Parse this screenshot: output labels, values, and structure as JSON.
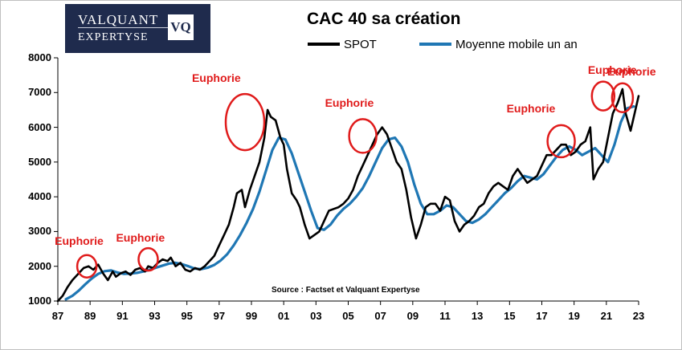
{
  "logo": {
    "line1": "VALQUANT",
    "line2": "EXPERTYSE",
    "badge": "VQ"
  },
  "colors": {
    "spot": "#000000",
    "moving_average": "#1f77b4",
    "euphoria": "#e01b1b"
  },
  "source": "Source : Factset et Valquant Expertyse",
  "chart_data": {
    "type": "line",
    "title": "CAC 40 sa création",
    "xlabel": "",
    "ylabel": "",
    "ylim": [
      1000,
      8000
    ],
    "xlim": [
      1987.0,
      2023.0
    ],
    "y_ticks": [
      "1000",
      "2000",
      "3000",
      "4000",
      "5000",
      "6000",
      "7000",
      "8000"
    ],
    "x_ticks": [
      {
        "label": "87",
        "x": 1987
      },
      {
        "label": "89",
        "x": 1989
      },
      {
        "label": "91",
        "x": 1991
      },
      {
        "label": "93",
        "x": 1993
      },
      {
        "label": "95",
        "x": 1995
      },
      {
        "label": "97",
        "x": 1997
      },
      {
        "label": "99",
        "x": 1999
      },
      {
        "label": "01",
        "x": 2001
      },
      {
        "label": "03",
        "x": 2003
      },
      {
        "label": "05",
        "x": 2005
      },
      {
        "label": "07",
        "x": 2007
      },
      {
        "label": "09",
        "x": 2009
      },
      {
        "label": "11",
        "x": 2011
      },
      {
        "label": "13",
        "x": 2013
      },
      {
        "label": "15",
        "x": 2015
      },
      {
        "label": "17",
        "x": 2017
      },
      {
        "label": "19",
        "x": 2019
      },
      {
        "label": "21",
        "x": 2021
      },
      {
        "label": "23",
        "x": 2023
      }
    ],
    "grid": false,
    "legend_position": "top",
    "series": [
      {
        "name": "SPOT",
        "color": "#000000",
        "x": [
          1987.0,
          1987.3,
          1987.6,
          1987.9,
          1988.3,
          1988.6,
          1988.9,
          1989.2,
          1989.5,
          1989.8,
          1990.1,
          1990.4,
          1990.6,
          1990.9,
          1991.2,
          1991.5,
          1991.8,
          1992.1,
          1992.4,
          1992.6,
          1992.9,
          1993.2,
          1993.5,
          1993.8,
          1994.0,
          1994.3,
          1994.6,
          1994.9,
          1995.2,
          1995.5,
          1995.8,
          1996.1,
          1996.4,
          1996.7,
          1997.0,
          1997.3,
          1997.6,
          1997.9,
          1998.1,
          1998.4,
          1998.6,
          1998.9,
          1999.2,
          1999.5,
          1999.8,
          2000.0,
          2000.2,
          2000.5,
          2000.8,
          2001.0,
          2001.2,
          2001.5,
          2001.8,
          2002.0,
          2002.3,
          2002.6,
          2002.9,
          2003.2,
          2003.5,
          2003.8,
          2004.1,
          2004.4,
          2004.7,
          2005.0,
          2005.3,
          2005.6,
          2005.9,
          2006.2,
          2006.5,
          2006.8,
          2007.1,
          2007.4,
          2007.7,
          2008.0,
          2008.3,
          2008.6,
          2008.9,
          2009.2,
          2009.5,
          2009.8,
          2010.1,
          2010.4,
          2010.7,
          2011.0,
          2011.3,
          2011.6,
          2011.9,
          2012.2,
          2012.5,
          2012.8,
          2013.1,
          2013.4,
          2013.7,
          2014.0,
          2014.3,
          2014.6,
          2014.9,
          2015.2,
          2015.5,
          2015.8,
          2016.1,
          2016.4,
          2016.7,
          2017.0,
          2017.3,
          2017.6,
          2017.9,
          2018.2,
          2018.5,
          2018.8,
          2019.1,
          2019.4,
          2019.7,
          2020.0,
          2020.2,
          2020.5,
          2020.8,
          2021.1,
          2021.4,
          2021.7,
          2022.0,
          2022.2,
          2022.5,
          2022.8,
          2023.0
        ],
        "values": [
          1000,
          1150,
          1400,
          1600,
          1800,
          1950,
          2000,
          1900,
          2050,
          1800,
          1600,
          1850,
          1700,
          1800,
          1850,
          1750,
          1900,
          1950,
          1850,
          2000,
          1950,
          2100,
          2200,
          2150,
          2250,
          2000,
          2100,
          1900,
          1850,
          1950,
          1900,
          2000,
          2150,
          2300,
          2600,
          2900,
          3200,
          3700,
          4100,
          4200,
          3700,
          4200,
          4600,
          5000,
          5700,
          6500,
          6300,
          6200,
          5700,
          5500,
          4800,
          4100,
          3900,
          3700,
          3200,
          2800,
          2900,
          3000,
          3300,
          3600,
          3650,
          3700,
          3800,
          3950,
          4200,
          4600,
          4900,
          5200,
          5500,
          5800,
          6000,
          5800,
          5400,
          5000,
          4800,
          4200,
          3400,
          2800,
          3200,
          3700,
          3800,
          3800,
          3600,
          4000,
          3900,
          3300,
          3000,
          3200,
          3300,
          3450,
          3700,
          3800,
          4100,
          4300,
          4400,
          4300,
          4200,
          4600,
          4800,
          4600,
          4400,
          4500,
          4600,
          4900,
          5200,
          5200,
          5350,
          5500,
          5500,
          5200,
          5300,
          5500,
          5600,
          6000,
          4500,
          4800,
          5000,
          5700,
          6400,
          6700,
          7100,
          6400,
          5900,
          6500,
          6900
        ]
      },
      {
        "name": "Moyenne mobile un an",
        "color": "#1f77b4",
        "x": [
          1987.5,
          1987.9,
          1988.3,
          1988.7,
          1989.1,
          1989.5,
          1989.9,
          1990.3,
          1990.7,
          1991.1,
          1991.5,
          1991.9,
          1992.3,
          1992.7,
          1993.1,
          1993.5,
          1993.9,
          1994.3,
          1994.7,
          1995.1,
          1995.5,
          1995.9,
          1996.3,
          1996.7,
          1997.1,
          1997.5,
          1997.9,
          1998.3,
          1998.7,
          1999.1,
          1999.5,
          1999.9,
          2000.3,
          2000.7,
          2001.1,
          2001.5,
          2001.9,
          2002.3,
          2002.7,
          2003.1,
          2003.5,
          2003.9,
          2004.3,
          2004.7,
          2005.1,
          2005.5,
          2005.9,
          2006.3,
          2006.7,
          2007.1,
          2007.5,
          2007.9,
          2008.3,
          2008.7,
          2009.1,
          2009.5,
          2009.9,
          2010.3,
          2010.7,
          2011.1,
          2011.5,
          2011.9,
          2012.3,
          2012.7,
          2013.1,
          2013.5,
          2013.9,
          2014.3,
          2014.7,
          2015.1,
          2015.5,
          2015.9,
          2016.3,
          2016.7,
          2017.1,
          2017.5,
          2017.9,
          2018.3,
          2018.7,
          2019.1,
          2019.5,
          2019.9,
          2020.3,
          2020.7,
          2021.1,
          2021.5,
          2021.9,
          2022.3,
          2022.7
        ],
        "values": [
          1050,
          1150,
          1300,
          1480,
          1650,
          1780,
          1860,
          1880,
          1820,
          1780,
          1790,
          1810,
          1850,
          1900,
          1960,
          2020,
          2080,
          2100,
          2060,
          2000,
          1930,
          1920,
          1960,
          2040,
          2170,
          2350,
          2600,
          2900,
          3250,
          3650,
          4150,
          4750,
          5350,
          5700,
          5650,
          5250,
          4700,
          4150,
          3600,
          3100,
          3050,
          3200,
          3450,
          3650,
          3800,
          4000,
          4250,
          4600,
          5000,
          5400,
          5650,
          5700,
          5450,
          5000,
          4350,
          3800,
          3500,
          3500,
          3600,
          3750,
          3700,
          3500,
          3300,
          3250,
          3350,
          3500,
          3700,
          3900,
          4100,
          4250,
          4450,
          4600,
          4550,
          4500,
          4650,
          4900,
          5150,
          5350,
          5450,
          5350,
          5200,
          5300,
          5400,
          5200,
          5000,
          5500,
          6150,
          6550,
          6600
        ]
      }
    ],
    "annotations": [
      {
        "text": "Euphorie",
        "x": 1988.8,
        "y": 2000
      },
      {
        "text": "Euphorie",
        "x": 1992.6,
        "y": 2200
      },
      {
        "text": "Euphorie",
        "x": 1998.6,
        "y": 6150
      },
      {
        "text": "Euphorie",
        "x": 2005.9,
        "y": 5750
      },
      {
        "text": "Euphorie",
        "x": 2018.2,
        "y": 5600
      },
      {
        "text": "Euphorie",
        "x": 2020.8,
        "y": 6900
      },
      {
        "text": "Euphorie",
        "x": 2022.0,
        "y": 6850
      }
    ]
  }
}
